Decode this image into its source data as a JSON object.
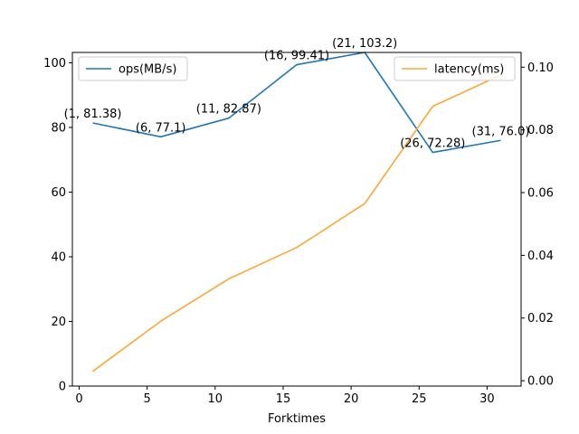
{
  "chart_data": {
    "type": "line",
    "xlabel": "Forktimes",
    "x": [
      1,
      6,
      11,
      16,
      21,
      26,
      31
    ],
    "xlim": [
      -0.5,
      32.5
    ],
    "xticks": [
      0,
      5,
      10,
      15,
      20,
      25,
      30
    ],
    "grid": false,
    "series": [
      {
        "name": "ops(MB/s)",
        "axis": "left",
        "color": "#1f77b4",
        "values": [
          81.38,
          77.1,
          82.87,
          99.41,
          103.2,
          72.28,
          76.0
        ],
        "annotations": [
          "(1, 81.38)",
          "(6, 77.1)",
          "(11, 82.87)",
          "(16, 99.41)",
          "(21, 103.2)",
          "(26, 72.28)",
          "(31, 76.0)"
        ],
        "legend_position": "upper-left"
      },
      {
        "name": "latency(ms)",
        "axis": "right",
        "color": "#ffa533",
        "values": [
          0.003,
          0.019,
          0.0325,
          0.0425,
          0.0565,
          0.0875,
          0.0975
        ],
        "legend_position": "upper-right"
      }
    ],
    "y_left": {
      "ylim": [
        0,
        103.2
      ],
      "ticks": [
        0,
        20,
        40,
        60,
        80,
        100
      ]
    },
    "y_right": {
      "ylim": [
        -0.0017,
        0.1047
      ],
      "ticks": [
        0.0,
        0.02,
        0.04,
        0.06,
        0.08,
        0.1
      ],
      "tick_labels": [
        "0.00",
        "0.02",
        "0.04",
        "0.06",
        "0.08",
        "0.10"
      ]
    }
  }
}
